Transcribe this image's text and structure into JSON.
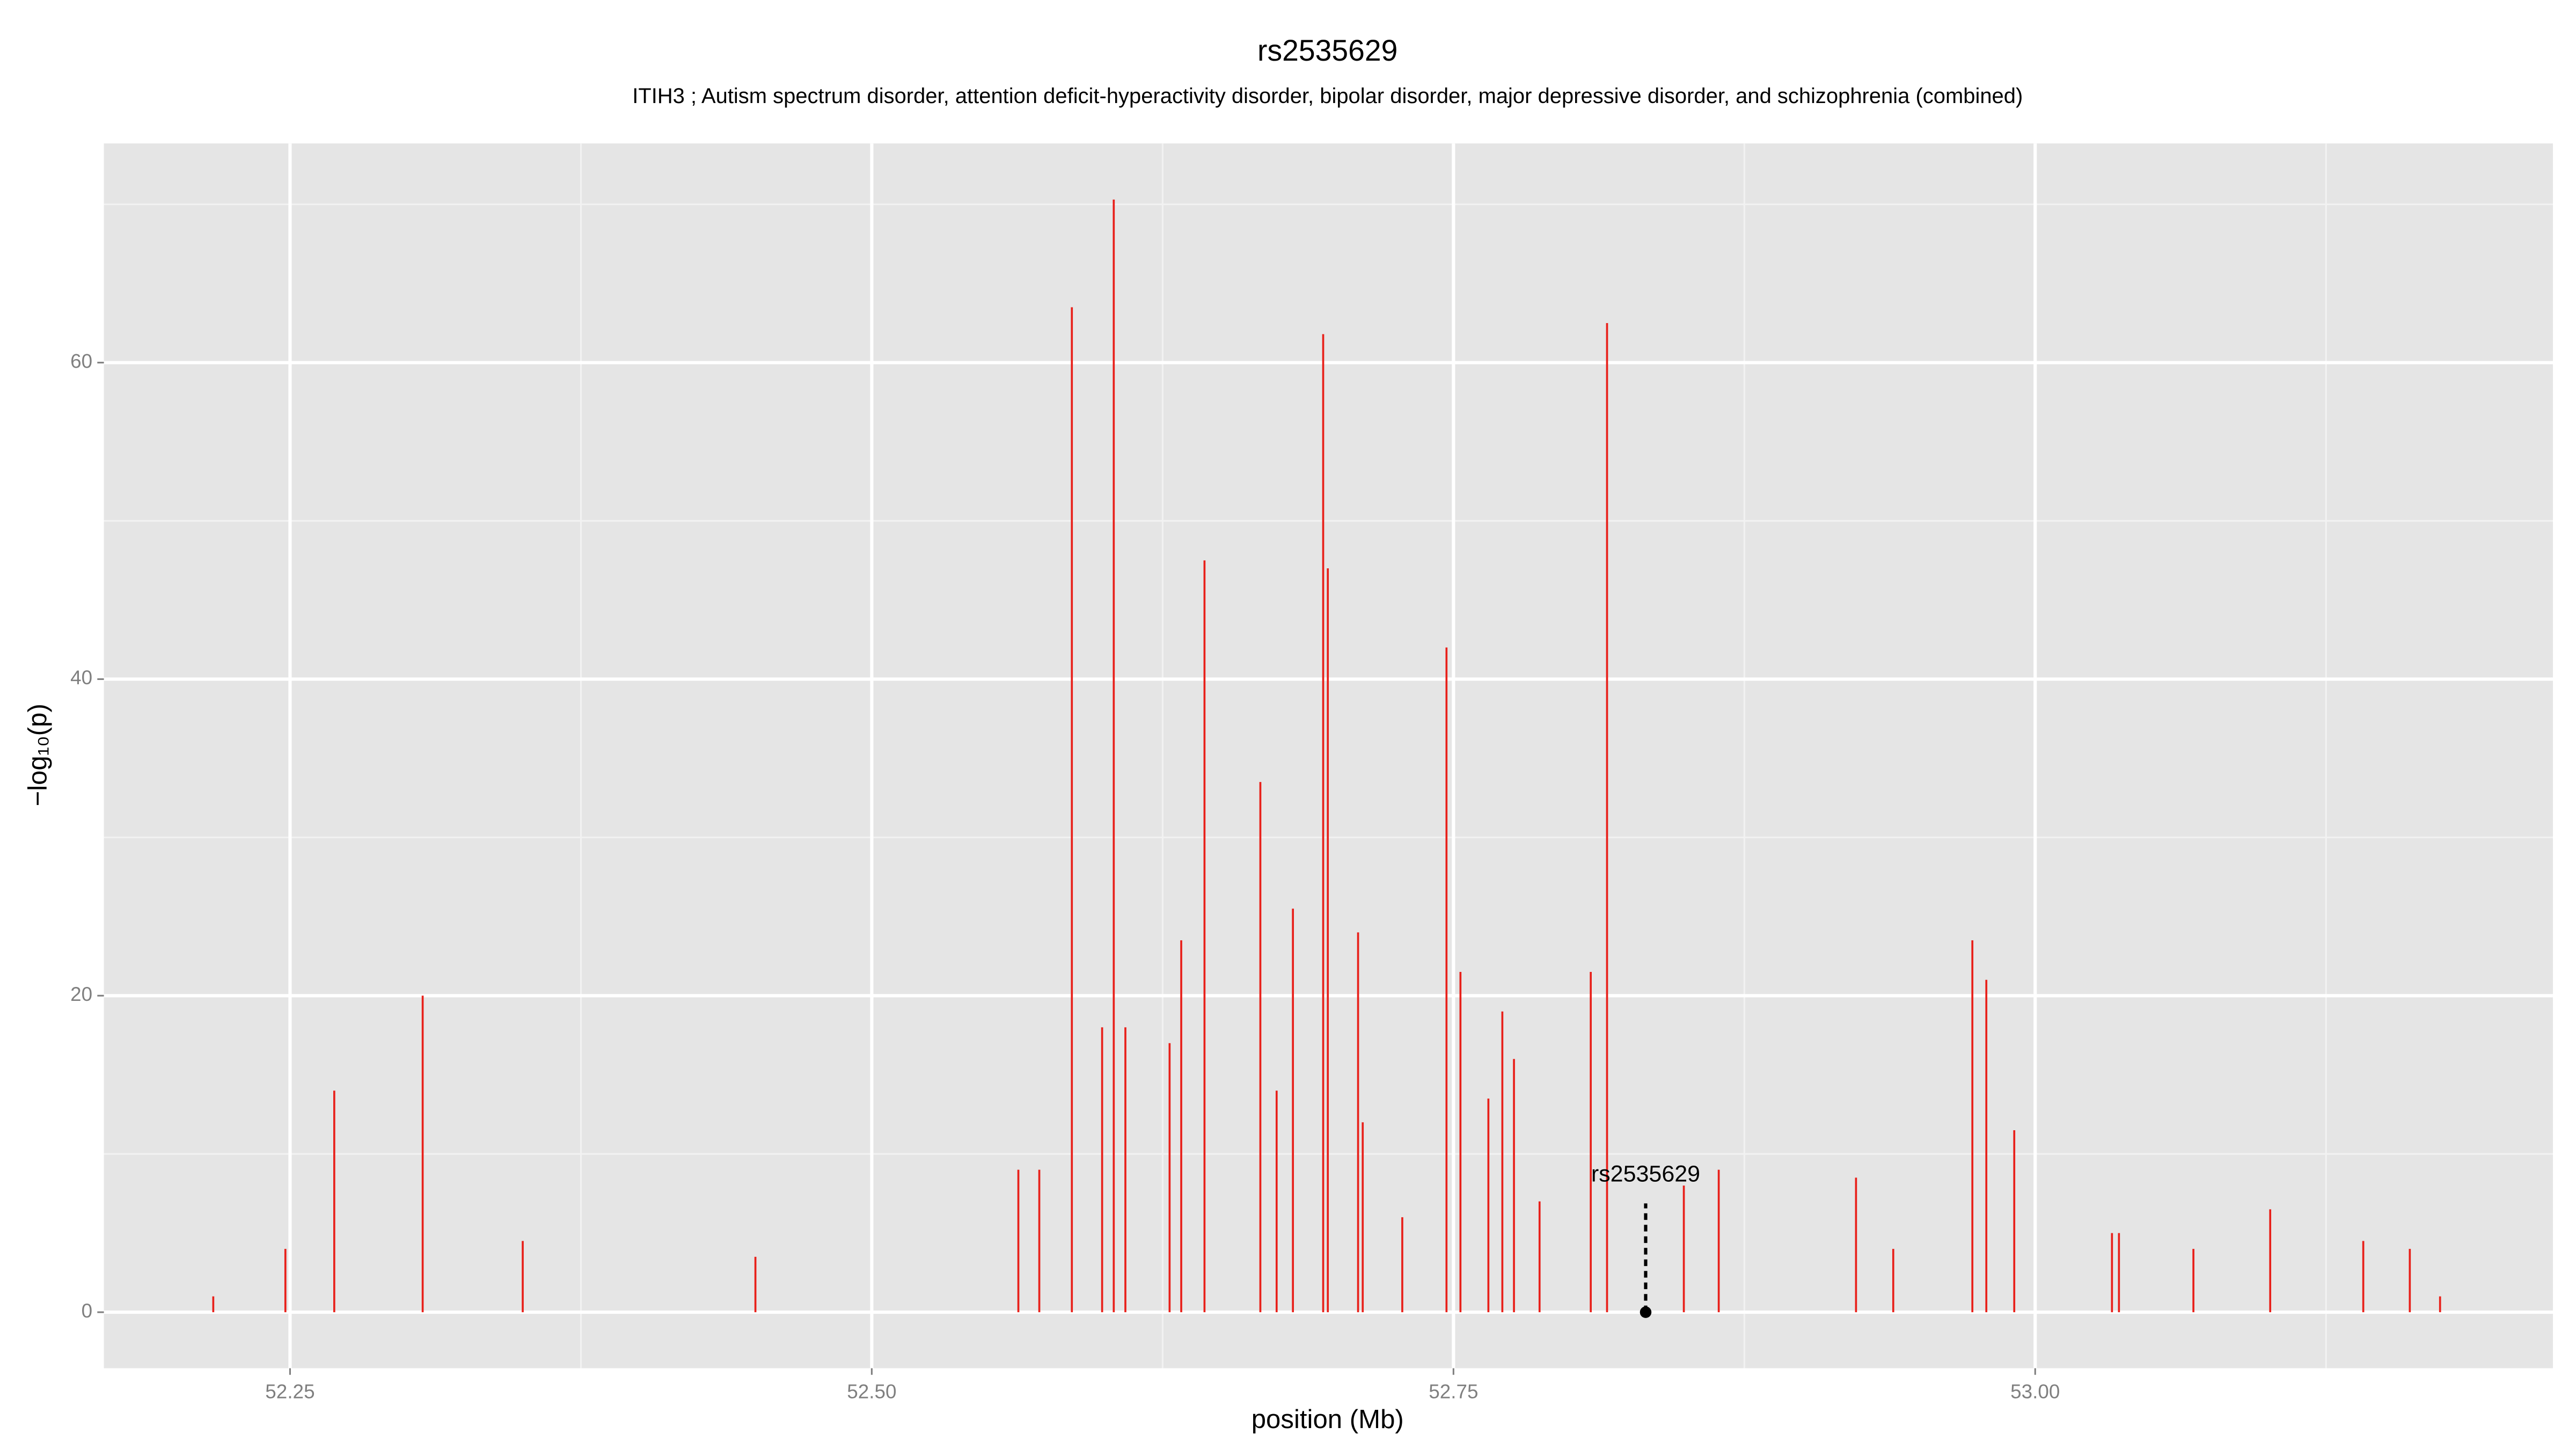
{
  "chart_data": {
    "type": "spike",
    "title": "rs2535629",
    "subtitle": "ITIH3 ; Autism spectrum disorder, attention deficit-hyperactivity disorder, bipolar disorder, major depressive disorder, and schizophrenia (combined)",
    "xlabel": "position (Mb)",
    "ylabel": "−log₁₀(p)",
    "color": "#e8201a",
    "x": [
      52.217,
      52.248,
      52.269,
      52.307,
      52.35,
      52.45,
      52.563,
      52.572,
      52.586,
      52.599,
      52.604,
      52.609,
      52.628,
      52.633,
      52.643,
      52.667,
      52.674,
      52.681,
      52.694,
      52.696,
      52.709,
      52.711,
      52.728,
      52.747,
      52.753,
      52.765,
      52.771,
      52.776,
      52.787,
      52.809,
      52.816,
      52.849,
      52.864,
      52.923,
      52.939,
      52.973,
      52.979,
      52.991,
      53.033,
      53.036,
      53.068,
      53.101,
      53.141,
      53.161,
      53.174
    ],
    "values": [
      1,
      4,
      14,
      20,
      4.5,
      3.5,
      9,
      9,
      63.5,
      18,
      70.3,
      18,
      17,
      23.5,
      47.5,
      33.5,
      14,
      25.5,
      61.8,
      47,
      24,
      12,
      6,
      42,
      21.5,
      13.5,
      19,
      16,
      7,
      21.5,
      62.5,
      8,
      9,
      8.5,
      4,
      23.5,
      21,
      11.5,
      5,
      5,
      4,
      6.5,
      4.5,
      4,
      1
    ],
    "annotation": {
      "label": "rs2535629",
      "x": 52.8326,
      "value": 0
    },
    "xlim": [
      52.17,
      53.2225
    ],
    "ylim": [
      -3.54,
      73.85
    ],
    "xticks": [
      52.25,
      {
        "value": 52.5,
        "label": "52.50"
      },
      52.75,
      {
        "value": 53,
        "label": "53.00"
      }
    ],
    "yticks": [
      0,
      20,
      40,
      60
    ],
    "x_minor_grid": [
      52.375,
      52.625,
      52.875,
      53.125
    ],
    "y_minor_grid": [
      10,
      30,
      50,
      70
    ],
    "grid": true
  }
}
